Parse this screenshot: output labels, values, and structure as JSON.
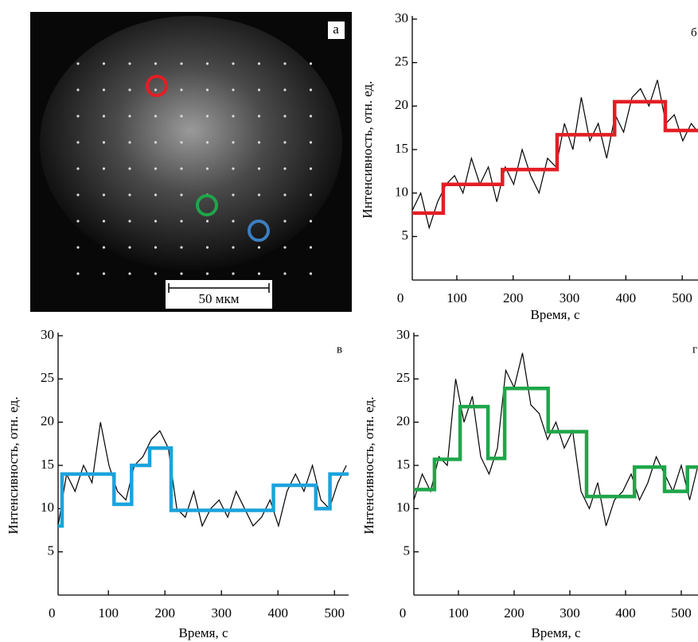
{
  "image": {
    "label": "а",
    "scale_bar": "50 мкм"
  },
  "chart_data": [
    {
      "type": "line",
      "panel_label": "б",
      "x_label": "Время, с",
      "y_label": "Интенсивность, отн. ед.",
      "xlim": [
        21,
        528
      ],
      "ylim": [
        0,
        30
      ],
      "xticks": [
        0,
        100,
        200,
        300,
        400,
        500
      ],
      "yticks": [
        5,
        10,
        15,
        20,
        25,
        30
      ],
      "series": [
        {
          "color": "#000000",
          "x": [
            21,
            36,
            51,
            66,
            81,
            96,
            111,
            126,
            141,
            156,
            171,
            186,
            201,
            216,
            231,
            246,
            261,
            276,
            291,
            306,
            321,
            336,
            351,
            366,
            381,
            396,
            411,
            426,
            441,
            456,
            471,
            486,
            501,
            516,
            528
          ],
          "values": [
            8,
            10,
            6,
            9,
            11,
            12,
            10,
            14,
            11,
            13,
            9,
            13,
            11,
            15,
            12,
            10,
            14,
            13,
            18,
            15,
            21,
            16,
            18,
            14,
            19,
            17,
            21,
            22,
            20,
            23,
            18,
            19,
            16,
            18,
            17
          ]
        },
        {
          "color": "#e31e24",
          "step": true,
          "x": [
            21,
            76,
            181,
            278,
            380,
            470
          ],
          "values": [
            7.7,
            11,
            12.7,
            16.7,
            20.5,
            17.2
          ]
        }
      ]
    },
    {
      "type": "line",
      "panel_label": "в",
      "x_label": "Время, с",
      "y_label": "Интенсивность, отн. ед.",
      "xlim": [
        11,
        525
      ],
      "ylim": [
        0,
        30
      ],
      "xticks": [
        0,
        100,
        200,
        300,
        400,
        500
      ],
      "yticks": [
        5,
        10,
        15,
        20,
        25,
        30
      ],
      "series": [
        {
          "color": "#000000",
          "x": [
            11,
            26,
            41,
            56,
            71,
            86,
            101,
            116,
            131,
            146,
            161,
            176,
            191,
            206,
            221,
            236,
            251,
            266,
            281,
            296,
            311,
            326,
            341,
            356,
            371,
            386,
            401,
            416,
            431,
            446,
            461,
            476,
            491,
            506,
            521
          ],
          "values": [
            8,
            14,
            12,
            15,
            13,
            20,
            15,
            12,
            11,
            15,
            16,
            18,
            19,
            17,
            10,
            9,
            12,
            8,
            10,
            11,
            9,
            12,
            10,
            8,
            9,
            11,
            8,
            12,
            14,
            12,
            15,
            11,
            10,
            13,
            15
          ]
        },
        {
          "color": "#1ba3dc",
          "step": true,
          "x": [
            11,
            18,
            110,
            141,
            173,
            211,
            392,
            467,
            492
          ],
          "values": [
            8,
            14,
            10.5,
            15,
            17,
            9.8,
            12.7,
            10,
            14
          ]
        }
      ]
    },
    {
      "type": "line",
      "panel_label": "г",
      "x_label": "Время, с",
      "y_label": "Интенсивность, отн. ед.",
      "xlim": [
        20,
        530
      ],
      "ylim": [
        0,
        30
      ],
      "xticks": [
        0,
        100,
        200,
        300,
        400,
        500
      ],
      "yticks": [
        5,
        10,
        15,
        20,
        25,
        30
      ],
      "series": [
        {
          "color": "#000000",
          "x": [
            20,
            35,
            50,
            65,
            80,
            95,
            110,
            125,
            140,
            155,
            170,
            185,
            200,
            215,
            230,
            245,
            260,
            275,
            290,
            305,
            320,
            335,
            350,
            365,
            380,
            395,
            410,
            425,
            440,
            455,
            470,
            485,
            500,
            515,
            530
          ],
          "values": [
            11,
            14,
            12,
            16,
            15,
            25,
            20,
            23,
            16,
            14,
            17,
            26,
            24,
            28,
            22,
            21,
            18,
            20,
            17,
            19,
            12,
            10,
            13,
            8,
            11,
            12,
            14,
            11,
            13,
            16,
            14,
            12,
            15,
            11,
            15
          ]
        },
        {
          "color": "#1fa64a",
          "step": true,
          "x": [
            20,
            57,
            103,
            153,
            183,
            261,
            330,
            416,
            470,
            511
          ],
          "values": [
            12.2,
            15.7,
            21.8,
            15.8,
            23.9,
            18.9,
            11.4,
            14.8,
            12,
            14.8
          ]
        }
      ]
    }
  ]
}
